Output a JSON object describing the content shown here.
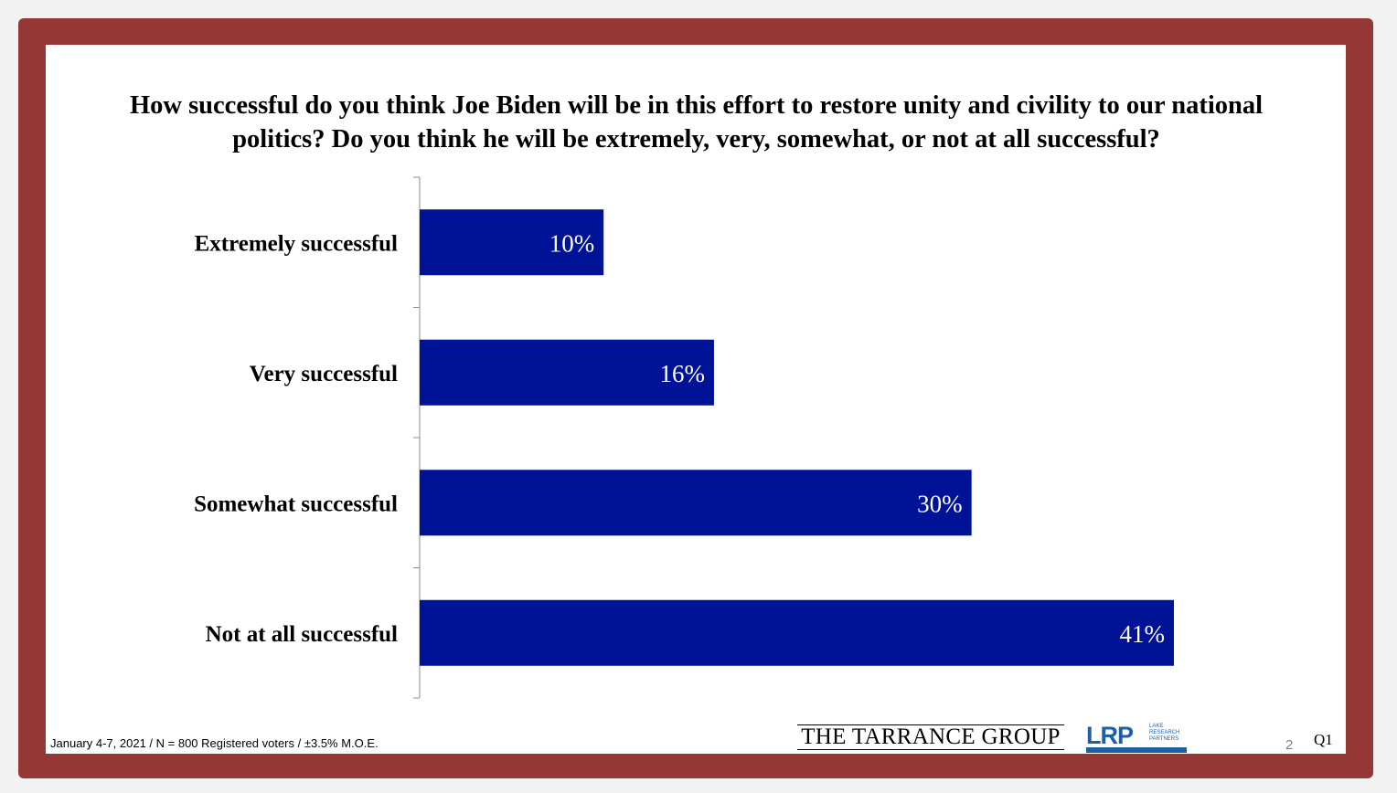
{
  "question": "How successful do you think Joe Biden will be in this effort to restore unity and civility to our national politics?  Do you think he will be extremely, very, somewhat, or not at all successful?",
  "footer_note": "January 4-7, 2021 / N = 800 Registered voters / ±3.5% M.O.E.",
  "logos": {
    "tarrance": "THE TARRANCE GROUP",
    "lrp": "LRP",
    "lrp_sub": [
      "LAKE",
      "RESEARCH",
      "PARTNERS"
    ]
  },
  "page_number": "2",
  "question_id": "Q1",
  "colors": {
    "frame": "#953735",
    "bar": "#001295",
    "bar_label": "#ffffff"
  },
  "chart_data": {
    "type": "bar",
    "orientation": "horizontal",
    "title": "",
    "categories": [
      "Extremely successful",
      "Very successful",
      "Somewhat successful",
      "Not at all successful"
    ],
    "values": [
      10,
      16,
      30,
      41
    ],
    "labels": [
      "10%",
      "16%",
      "30%",
      "41%"
    ],
    "unit": "%",
    "xlim": [
      0,
      41
    ],
    "grid": false
  }
}
